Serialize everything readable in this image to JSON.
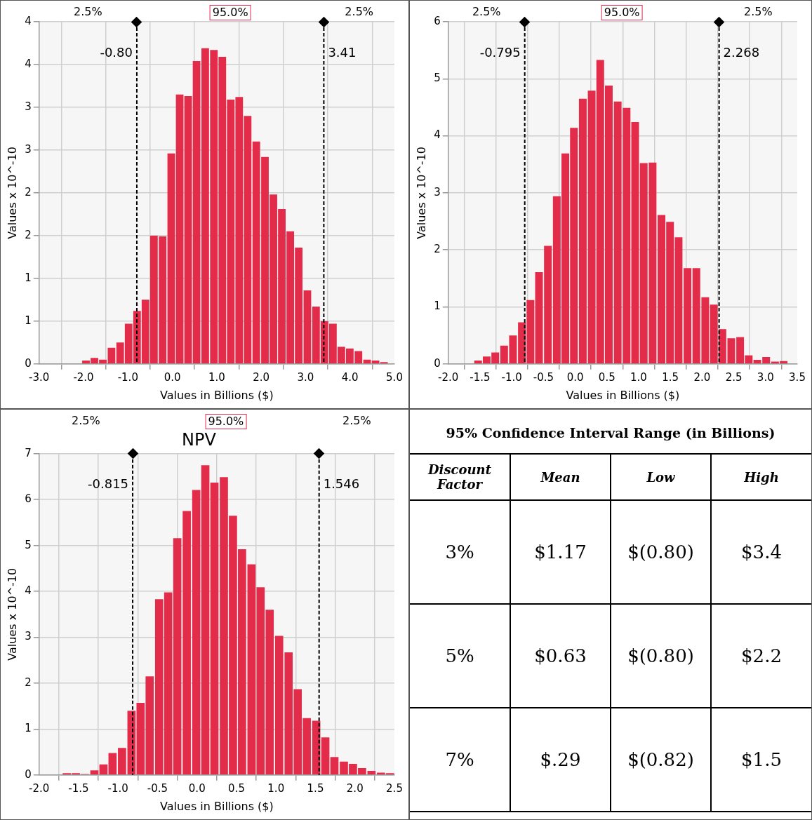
{
  "chart_data": [
    {
      "type": "histogram",
      "xlabel": "Values in Billions ($)",
      "ylabel": "Values x 10^-10",
      "color": "#e32b4a",
      "bins": [
        -2.04,
        -1.85,
        -1.66,
        -1.47,
        -1.27,
        -1.08,
        -0.89,
        -0.7,
        -0.51,
        -0.32,
        -0.12,
        0.07,
        0.26,
        0.45,
        0.64,
        0.84,
        1.03,
        1.22,
        1.41,
        1.6,
        1.79,
        1.99,
        2.18,
        2.37,
        2.56,
        2.75,
        2.94,
        3.14,
        3.33,
        3.52,
        3.71,
        3.9,
        4.09,
        4.29,
        4.48,
        4.67,
        4.86
      ],
      "values": [
        0.04,
        0.07,
        0.05,
        0.19,
        0.25,
        0.47,
        0.62,
        0.75,
        1.5,
        1.49,
        2.46,
        3.15,
        3.13,
        3.54,
        3.69,
        3.67,
        3.59,
        3.09,
        3.12,
        2.9,
        2.6,
        2.42,
        1.98,
        1.81,
        1.55,
        1.36,
        0.86,
        0.67,
        0.5,
        0.47,
        0.2,
        0.18,
        0.15,
        0.05,
        0.04,
        0.02
      ],
      "xlim": [
        -3,
        5
      ],
      "xticks": [
        {
          "value": -3,
          "label": "-3.0"
        },
        {
          "value": -2,
          "label": "-2.0"
        },
        {
          "value": -1,
          "label": "-1.0"
        },
        {
          "value": 0,
          "label": "0.0"
        },
        {
          "value": 1,
          "label": "1.0"
        },
        {
          "value": 2,
          "label": "2.0"
        },
        {
          "value": 3,
          "label": "3.0"
        },
        {
          "value": 4,
          "label": "4.0"
        },
        {
          "value": 5,
          "label": "5.0"
        }
      ],
      "ylim": [
        0,
        4
      ],
      "yticks": [
        0,
        {
          "value": 0.5,
          "label": "1"
        },
        1,
        {
          "value": 1.5,
          "label": "2"
        },
        2,
        {
          "value": 2.5,
          "label": "3"
        },
        3,
        {
          "value": 3.5,
          "label": "4"
        },
        4
      ],
      "ref_lines": [
        {
          "axis": "x",
          "value": -0.8,
          "label": "-0.80",
          "line_style": "dashed"
        },
        {
          "axis": "x",
          "value": 3.41,
          "label": "3.41",
          "line_style": "dashed"
        }
      ],
      "annotations": [
        "2.5%",
        "95.0%",
        "2.5%"
      ],
      "grid": true
    },
    {
      "type": "histogram",
      "xlabel": "Values in Billions ($)",
      "ylabel": "Values x 10^-10",
      "color": "#e32b4a",
      "bins": [
        -1.6,
        -1.46,
        -1.33,
        -1.19,
        -1.05,
        -0.91,
        -0.77,
        -0.64,
        -0.5,
        -0.36,
        -0.22,
        -0.09,
        0.05,
        0.19,
        0.33,
        0.46,
        0.6,
        0.74,
        0.88,
        1.01,
        1.15,
        1.29,
        1.43,
        1.56,
        1.7,
        1.84,
        1.98,
        2.12,
        2.25,
        2.39,
        2.53,
        2.67,
        2.8,
        2.94,
        3.08,
        3.22,
        3.35
      ],
      "values": [
        0.06,
        0.13,
        0.2,
        0.32,
        0.5,
        0.73,
        1.12,
        1.61,
        2.07,
        2.94,
        3.69,
        4.14,
        4.65,
        4.79,
        5.33,
        4.88,
        4.6,
        4.49,
        4.24,
        3.52,
        3.53,
        2.61,
        2.49,
        2.22,
        1.68,
        1.68,
        1.17,
        1.04,
        0.61,
        0.45,
        0.47,
        0.15,
        0.07,
        0.12,
        0.04,
        0.05
      ],
      "xlim": [
        -2,
        3.5
      ],
      "xticks": [
        {
          "value": -2,
          "label": "-2.0"
        },
        {
          "value": -1.5,
          "label": "-1.5"
        },
        {
          "value": -1,
          "label": "-1.0"
        },
        {
          "value": -0.5,
          "label": "-0.5"
        },
        {
          "value": 0,
          "label": "0.0"
        },
        {
          "value": 0.5,
          "label": "0.5"
        },
        {
          "value": 1,
          "label": "1.0"
        },
        {
          "value": 1.5,
          "label": "1.5"
        },
        {
          "value": 2,
          "label": "2.0"
        },
        {
          "value": 2.5,
          "label": "2.5"
        },
        {
          "value": 3,
          "label": "3.0"
        },
        {
          "value": 3.5,
          "label": "3.5"
        }
      ],
      "ylim": [
        0,
        6
      ],
      "yticks": [
        0,
        1,
        2,
        3,
        4,
        5,
        6
      ],
      "ref_lines": [
        {
          "axis": "x",
          "value": -0.795,
          "label": "-0.795",
          "line_style": "dashed"
        },
        {
          "axis": "x",
          "value": 2.268,
          "label": "2.268",
          "line_style": "dashed"
        }
      ],
      "annotations": [
        "2.5%",
        "95.0%",
        "2.5%"
      ],
      "grid": true
    },
    {
      "type": "histogram",
      "title": "NPV",
      "xlabel": "Values in Billions ($)",
      "ylabel": "Values x 10^-10",
      "color": "#e32b4a",
      "bins": [
        -1.71,
        -1.59,
        -1.48,
        -1.36,
        -1.24,
        -1.13,
        -1.01,
        -0.89,
        -0.77,
        -0.66,
        -0.54,
        -0.42,
        -0.31,
        -0.19,
        -0.07,
        0.05,
        0.16,
        0.28,
        0.4,
        0.51,
        0.63,
        0.75,
        0.86,
        0.98,
        1.1,
        1.22,
        1.33,
        1.45,
        1.57,
        1.68,
        1.8,
        1.92,
        2.03,
        2.15,
        2.27,
        2.39,
        2.5
      ],
      "values": [
        0.04,
        0.04,
        0.02,
        0.1,
        0.23,
        0.48,
        0.59,
        1.4,
        1.57,
        2.15,
        3.83,
        3.98,
        5.16,
        5.75,
        6.21,
        6.75,
        6.37,
        6.49,
        5.65,
        4.92,
        4.59,
        4.09,
        3.6,
        3.03,
        2.67,
        1.87,
        1.24,
        1.18,
        0.82,
        0.39,
        0.29,
        0.24,
        0.15,
        0.09,
        0.05,
        0.04
      ],
      "xlim": [
        -2,
        2.5
      ],
      "xticks": [
        {
          "value": -2,
          "label": "-2.0"
        },
        {
          "value": -1.5,
          "label": "-1.5"
        },
        {
          "value": -1,
          "label": "-1.0"
        },
        {
          "value": -0.5,
          "label": "-0.5"
        },
        {
          "value": 0,
          "label": "0.0"
        },
        {
          "value": 0.5,
          "label": "0.5"
        },
        {
          "value": 1,
          "label": "1.0"
        },
        {
          "value": 1.5,
          "label": "1.5"
        },
        {
          "value": 2,
          "label": "2.0"
        },
        {
          "value": 2.5,
          "label": "2.5"
        }
      ],
      "ylim": [
        0,
        7
      ],
      "yticks": [
        0,
        1,
        2,
        3,
        4,
        5,
        6,
        7
      ],
      "ref_lines": [
        {
          "axis": "x",
          "value": -0.815,
          "label": "-0.815",
          "line_style": "dashed"
        },
        {
          "axis": "x",
          "value": 1.546,
          "label": "1.546",
          "line_style": "dashed"
        }
      ],
      "annotations": [
        "2.5%",
        "95.0%",
        "2.5%"
      ],
      "grid": true
    },
    {
      "type": "other",
      "title": "95% Confidence Interval Range (in Billions)",
      "annotations": [
        "Discount Factor",
        "Mean",
        "Low",
        "High",
        "3%",
        "$1.17",
        "$(0.80)",
        "$3.4",
        "5%",
        "$0.63",
        "$(0.80)",
        "$2.2",
        "7%",
        "$.29",
        "$(0.82)",
        "$1.5"
      ]
    }
  ]
}
